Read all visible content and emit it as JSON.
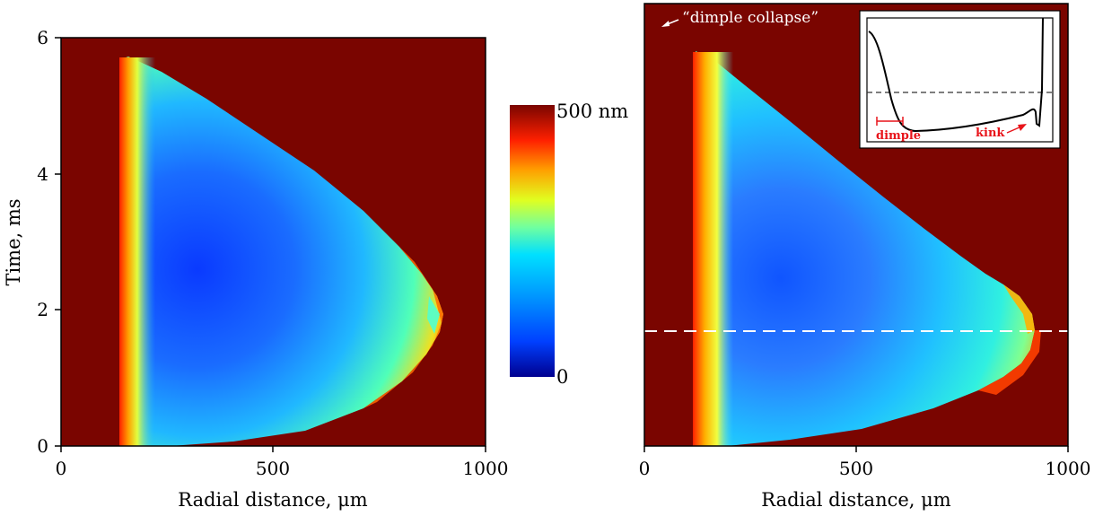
{
  "colors": {
    "background_film": "#7a0500",
    "colormap": [
      "#00008f",
      "#0050ff",
      "#00c8ff",
      "#50ffb0",
      "#d8ff30",
      "#ffa000",
      "#ff2000",
      "#7a0500"
    ],
    "inset_marker_color": "#e8141a",
    "dashed_line_color": "#ffffff"
  },
  "chart_data": [
    {
      "type": "heatmap",
      "panel": "left",
      "xlabel": "Radial distance, μm",
      "ylabel": "Time, ms",
      "xlim": [
        0,
        1000
      ],
      "ylim": [
        0,
        6
      ],
      "x_ticks": [
        "0",
        "500",
        "1000"
      ],
      "y_ticks": [
        "0",
        "2",
        "4",
        "6"
      ],
      "colorbar": {
        "min_label": "0",
        "max_label": "500 nm",
        "range_nm": [
          0,
          500
        ]
      },
      "film_region": {
        "inner_radius_um": 145,
        "outer_radius_max_um": 900,
        "time_at_max_extent_ms": 1.75,
        "time_end_ms": 5.7,
        "min_thickness_center_um": 340,
        "min_thickness_center_ms": 2.6
      }
    },
    {
      "type": "heatmap",
      "panel": "right",
      "xlabel": "Radial distance, μm",
      "xlim": [
        0,
        1000
      ],
      "ylim": [
        0,
        6
      ],
      "x_ticks": [
        "0",
        "500",
        "1000"
      ],
      "film_region": {
        "inner_radius_um": 160,
        "outer_radius_max_um": 930,
        "time_at_max_extent_ms": 1.7,
        "time_end_ms": 5.75,
        "min_thickness_center_um": 330,
        "min_thickness_center_ms": 2.5
      },
      "dashed_line_time_ms": 1.7,
      "annotation": "“dimple collapse”",
      "inset": {
        "labels": [
          "dimple",
          "kink"
        ]
      }
    }
  ]
}
